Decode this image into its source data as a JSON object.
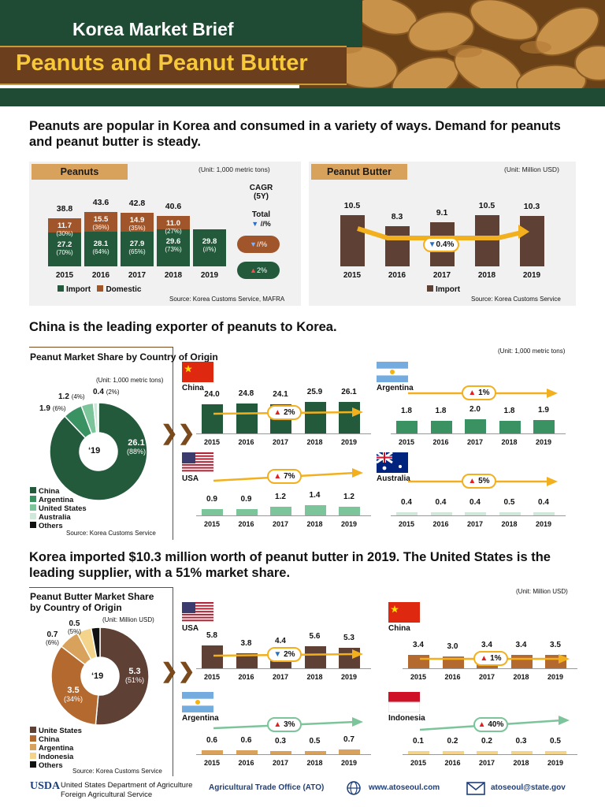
{
  "header": {
    "title": "Korea Market Brief",
    "subtitle": "Peanuts and Peanut Butter"
  },
  "intro": "Peanuts are popular in Korea and consumed in a variety of ways. Demand for peanuts and peanut butter is steady.",
  "peanuts": {
    "tag": "Peanuts",
    "unit": "(Unit: 1,000 metric tons)",
    "years": [
      "2015",
      "2016",
      "2017",
      "2018",
      "2019"
    ],
    "totals": [
      "38.8",
      "43.6",
      "42.8",
      "40.6",
      ""
    ],
    "import": [
      "27.2",
      "28.1",
      "27.9",
      "29.6",
      "29.8"
    ],
    "import_pct": [
      "(70%)",
      "(64%)",
      "(65%)",
      "(73%)",
      "(//%)"
    ],
    "domestic": [
      "11.7",
      "15.5",
      "14.9",
      "11.0",
      ""
    ],
    "domestic_pct": [
      "(30%)",
      "(36%)",
      "(35%)",
      "(27%)",
      ""
    ],
    "cagr_label": "CAGR",
    "cagr_period": "(5Y)",
    "total_label": "Total",
    "total_cagr": "//%",
    "domestic_cagr": "//%",
    "import_cagr": "2%",
    "legend_import": "Import",
    "legend_domestic": "Domestic",
    "source": "Source: Korea Customs Service, MAFRA",
    "colors": {
      "import": "#245a3c",
      "domestic": "#a0562a"
    }
  },
  "peanut_butter": {
    "tag": "Peanut Butter",
    "unit": "(Unit: Million USD)",
    "years": [
      "2015",
      "2016",
      "2017",
      "2018",
      "2019"
    ],
    "values": [
      "10.5",
      "8.3",
      "9.1",
      "10.5",
      "10.3"
    ],
    "trend": "0.4%",
    "legend_import": "Import",
    "source": "Source: Korea Customs Service",
    "color": "#5e4035"
  },
  "china_headline": "China is the leading exporter of peanuts to Korea.",
  "peanut_share": {
    "title": "Peanut Market Share by Country of Origin",
    "unit": "(Unit: 1,000 metric tons)",
    "center": "‘19",
    "labels": {
      "china": "26.1",
      "china_pct": "(88%)",
      "argentina": "1.9",
      "argentina_pct": "(6%)",
      "us": "1.2",
      "us_pct": "(4%)",
      "australia": "0.4",
      "australia_pct": "(2%)"
    },
    "legend": [
      "China",
      "Argentina",
      "United States",
      "Australia",
      "Others"
    ],
    "source": "Source: Korea Customs Service",
    "unit_right": "(Unit: 1,000 metric tons)",
    "countries": [
      {
        "name": "China",
        "values": [
          "24.0",
          "24.8",
          "24.1",
          "25.9",
          "26.1"
        ],
        "trend": "2%",
        "dir": "up"
      },
      {
        "name": "Argentina",
        "values": [
          "1.8",
          "1.8",
          "2.0",
          "1.8",
          "1.9"
        ],
        "trend": "1%",
        "dir": "up"
      },
      {
        "name": "USA",
        "values": [
          "0.9",
          "0.9",
          "1.2",
          "1.4",
          "1.2"
        ],
        "trend": "7%",
        "dir": "up"
      },
      {
        "name": "Australia",
        "values": [
          "0.4",
          "0.4",
          "0.4",
          "0.5",
          "0.4"
        ],
        "trend": "5%",
        "dir": "up"
      }
    ],
    "years": [
      "2015",
      "2016",
      "2017",
      "2018",
      "2019"
    ]
  },
  "pb_headline": "Korea imported $10.3 million worth of peanut butter in 2019.  The United States is the leading supplier, with a 51% market share.",
  "pb_share": {
    "title": "Peanut Butter Market Share by Country of Origin",
    "unit": "(Unit: Million USD)",
    "center": "‘19",
    "labels": {
      "us": "5.3",
      "us_pct": "(51%)",
      "china": "3.5",
      "china_pct": "(34%)",
      "argentina": "0.7",
      "argentina_pct": "(6%)",
      "indonesia": "0.5",
      "indonesia_pct": "(5%)"
    },
    "legend": [
      "Unite States",
      "China",
      "Argentina",
      "Indonesia",
      "Others"
    ],
    "source": "Source: Korea Customs Service",
    "unit_right": "(Unit: Million USD)",
    "countries": [
      {
        "name": "USA",
        "values": [
          "5.8",
          "3.8",
          "4.4",
          "5.6",
          "5.3"
        ],
        "trend": "2%",
        "dir": "down"
      },
      {
        "name": "China",
        "values": [
          "3.4",
          "3.0",
          "3.4",
          "3.4",
          "3.5"
        ],
        "trend": "1%",
        "dir": "up"
      },
      {
        "name": "Argentina",
        "values": [
          "0.6",
          "0.6",
          "0.3",
          "0.5",
          "0.7"
        ],
        "trend": "3%",
        "dir": "up"
      },
      {
        "name": "Indonesia",
        "values": [
          "0.1",
          "0.2",
          "0.2",
          "0.3",
          "0.5"
        ],
        "trend": "40%",
        "dir": "up"
      }
    ],
    "years": [
      "2015",
      "2016",
      "2017",
      "2018",
      "2019"
    ]
  },
  "footer": {
    "usda": "USDA",
    "dept1": "United States Department of Agriculture",
    "dept2": "Foreign Agricultural Service",
    "ato": "Agricultural Trade Office (ATO)",
    "web": "www.atoseoul.com",
    "email": "atoseoul@state.gov"
  }
}
